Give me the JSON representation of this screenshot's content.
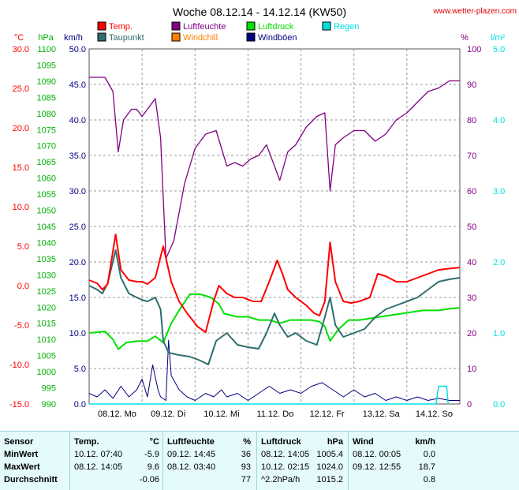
{
  "title": "Woche 08.12.14 - 14.12.14 (KW50)",
  "source": "www.wetter-plazen.com",
  "colors": {
    "temp": "#ff0000",
    "dewpoint": "#2f6e6e",
    "humidity": "#800080",
    "windchill": "#ff8000",
    "pressure": "#00e000",
    "gust": "#000080",
    "rain": "#00e0e0",
    "grid": "#999999"
  },
  "legend": [
    {
      "label": "Temp.",
      "color": "#ff0000"
    },
    {
      "label": "Taupunkt",
      "color": "#2f6e6e"
    },
    {
      "label": "Luftfeuchte",
      "color": "#800080"
    },
    {
      "label": "Windchill",
      "color": "#ff8000"
    },
    {
      "label": "Luftdruck",
      "color": "#00e000"
    },
    {
      "label": "Windböen",
      "color": "#000080"
    },
    {
      "label": "Regen",
      "color": "#00e0e0"
    }
  ],
  "chart_data": {
    "type": "line",
    "title": "Woche 08.12.14 - 14.12.14 (KW50)",
    "x_labels": [
      "08.12. Mo",
      "09.12. Di",
      "10.12. Mi",
      "11.12. Do",
      "12.12. Fr",
      "13.12. Sa",
      "14.12. So"
    ],
    "x_range": [
      0,
      7
    ],
    "grid": true,
    "axes": {
      "temp": {
        "unit": "°C",
        "min": -15,
        "max": 30,
        "ticks": [
          "30.0",
          "25.0",
          "20.0",
          "15.0",
          "10.0",
          "5.0",
          "0.0",
          "-5.0",
          "-10.0",
          "-15.0"
        ]
      },
      "pressure": {
        "unit": "hPa",
        "min": 990,
        "max": 1100,
        "ticks": [
          "1100",
          "1095",
          "1090",
          "1085",
          "1080",
          "1075",
          "1070",
          "1065",
          "1060",
          "1055",
          "1050",
          "1045",
          "1040",
          "1035",
          "1030",
          "1025",
          "1020",
          "1015",
          "1010",
          "1005",
          "1000",
          "995",
          "990"
        ]
      },
      "wind": {
        "unit": "km/h",
        "min": 0,
        "max": 50,
        "ticks": [
          "50.0",
          "45.0",
          "40.0",
          "35.0",
          "30.0",
          "25.0",
          "20.0",
          "15.0",
          "10.0",
          "5.0",
          "0.0"
        ]
      },
      "humidity": {
        "unit": "%",
        "min": 0,
        "max": 100,
        "ticks": [
          "100",
          "90",
          "80",
          "70",
          "60",
          "50",
          "40",
          "30",
          "20",
          "10",
          "0"
        ]
      },
      "rain": {
        "unit": "l/m²",
        "min": 0,
        "max": 5,
        "ticks": [
          "5.0",
          "4.0",
          "3.0",
          "2.0",
          "1.0",
          "0.0"
        ]
      }
    },
    "series": [
      {
        "name": "Temp.",
        "axis": "temp",
        "points": [
          [
            0,
            0.7
          ],
          [
            0.15,
            0.3
          ],
          [
            0.25,
            -0.5
          ],
          [
            0.35,
            0.2
          ],
          [
            0.5,
            6.5
          ],
          [
            0.6,
            2.0
          ],
          [
            0.75,
            0.7
          ],
          [
            0.9,
            0.5
          ],
          [
            1.0,
            0.5
          ],
          [
            1.1,
            0.2
          ],
          [
            1.25,
            1.0
          ],
          [
            1.4,
            5.0
          ],
          [
            1.55,
            0.5
          ],
          [
            1.7,
            -2.0
          ],
          [
            1.85,
            -3.5
          ],
          [
            2.05,
            -5.2
          ],
          [
            2.2,
            -5.9
          ],
          [
            2.35,
            -2.0
          ],
          [
            2.45,
            0.0
          ],
          [
            2.6,
            -1.0
          ],
          [
            2.75,
            -1.5
          ],
          [
            2.9,
            -1.5
          ],
          [
            3.1,
            -2.0
          ],
          [
            3.25,
            -2.0
          ],
          [
            3.4,
            0.5
          ],
          [
            3.55,
            3.2
          ],
          [
            3.65,
            1.5
          ],
          [
            3.75,
            -0.5
          ],
          [
            3.9,
            -1.5
          ],
          [
            4.1,
            -2.5
          ],
          [
            4.25,
            -3.5
          ],
          [
            4.35,
            -3.8
          ],
          [
            4.45,
            -2.0
          ],
          [
            4.55,
            5.5
          ],
          [
            4.65,
            0.5
          ],
          [
            4.8,
            -2.0
          ],
          [
            4.95,
            -2.2
          ],
          [
            5.1,
            -2.0
          ],
          [
            5.3,
            -1.5
          ],
          [
            5.45,
            1.5
          ],
          [
            5.6,
            1.2
          ],
          [
            5.8,
            0.5
          ],
          [
            6.0,
            0.5
          ],
          [
            6.2,
            1.0
          ],
          [
            6.4,
            1.5
          ],
          [
            6.6,
            2.0
          ],
          [
            6.85,
            2.2
          ],
          [
            7.0,
            2.3
          ]
        ]
      },
      {
        "name": "Taupunkt",
        "axis": "temp",
        "points": [
          [
            0,
            0.0
          ],
          [
            0.15,
            -0.5
          ],
          [
            0.25,
            -1.0
          ],
          [
            0.35,
            0.3
          ],
          [
            0.5,
            4.5
          ],
          [
            0.6,
            1.0
          ],
          [
            0.75,
            -1.0
          ],
          [
            0.9,
            -1.5
          ],
          [
            1.0,
            -1.8
          ],
          [
            1.1,
            -2.0
          ],
          [
            1.25,
            -1.5
          ],
          [
            1.35,
            -3.0
          ],
          [
            1.4,
            -7.0
          ],
          [
            1.5,
            -8.5
          ],
          [
            1.7,
            -8.8
          ],
          [
            1.9,
            -9.0
          ],
          [
            2.1,
            -9.5
          ],
          [
            2.25,
            -10.0
          ],
          [
            2.4,
            -7.0
          ],
          [
            2.6,
            -6.0
          ],
          [
            2.8,
            -7.5
          ],
          [
            3.0,
            -7.8
          ],
          [
            3.2,
            -8.0
          ],
          [
            3.35,
            -6.0
          ],
          [
            3.5,
            -3.5
          ],
          [
            3.6,
            -5.0
          ],
          [
            3.75,
            -6.5
          ],
          [
            3.9,
            -6.0
          ],
          [
            4.1,
            -7.0
          ],
          [
            4.3,
            -7.5
          ],
          [
            4.45,
            -4.0
          ],
          [
            4.55,
            -1.5
          ],
          [
            4.65,
            -5.0
          ],
          [
            4.8,
            -6.5
          ],
          [
            5.0,
            -6.0
          ],
          [
            5.2,
            -5.5
          ],
          [
            5.4,
            -4.0
          ],
          [
            5.6,
            -3.0
          ],
          [
            5.8,
            -2.5
          ],
          [
            6.0,
            -2.0
          ],
          [
            6.2,
            -1.5
          ],
          [
            6.4,
            -0.5
          ],
          [
            6.6,
            0.5
          ],
          [
            6.8,
            0.8
          ],
          [
            7.0,
            1.0
          ]
        ]
      },
      {
        "name": "Luftfeuchte",
        "axis": "humidity",
        "points": [
          [
            0,
            92
          ],
          [
            0.3,
            92
          ],
          [
            0.45,
            88
          ],
          [
            0.55,
            71
          ],
          [
            0.65,
            80
          ],
          [
            0.8,
            83
          ],
          [
            0.9,
            83
          ],
          [
            1.0,
            81
          ],
          [
            1.1,
            83
          ],
          [
            1.25,
            86
          ],
          [
            1.35,
            75
          ],
          [
            1.45,
            41
          ],
          [
            1.6,
            46
          ],
          [
            1.8,
            62
          ],
          [
            2.0,
            72
          ],
          [
            2.2,
            76
          ],
          [
            2.4,
            77
          ],
          [
            2.5,
            72
          ],
          [
            2.6,
            67
          ],
          [
            2.75,
            68
          ],
          [
            2.9,
            67
          ],
          [
            3.05,
            69
          ],
          [
            3.2,
            70
          ],
          [
            3.35,
            73
          ],
          [
            3.5,
            67
          ],
          [
            3.6,
            63
          ],
          [
            3.75,
            71
          ],
          [
            3.9,
            73
          ],
          [
            4.1,
            78
          ],
          [
            4.3,
            81
          ],
          [
            4.45,
            82
          ],
          [
            4.55,
            60
          ],
          [
            4.65,
            73
          ],
          [
            4.8,
            75
          ],
          [
            5.0,
            77
          ],
          [
            5.2,
            77
          ],
          [
            5.4,
            74
          ],
          [
            5.6,
            76
          ],
          [
            5.8,
            80
          ],
          [
            6.0,
            82
          ],
          [
            6.2,
            85
          ],
          [
            6.4,
            88
          ],
          [
            6.6,
            89
          ],
          [
            6.8,
            91
          ],
          [
            7.0,
            91
          ]
        ]
      },
      {
        "name": "Luftdruck",
        "axis": "pressure",
        "points": [
          [
            0,
            1012
          ],
          [
            0.3,
            1012.5
          ],
          [
            0.45,
            1010
          ],
          [
            0.55,
            1007
          ],
          [
            0.7,
            1009
          ],
          [
            0.9,
            1009.5
          ],
          [
            1.1,
            1009.5
          ],
          [
            1.25,
            1011
          ],
          [
            1.4,
            1009
          ],
          [
            1.55,
            1015
          ],
          [
            1.7,
            1019
          ],
          [
            1.9,
            1024
          ],
          [
            2.1,
            1024
          ],
          [
            2.3,
            1023
          ],
          [
            2.45,
            1021
          ],
          [
            2.55,
            1018
          ],
          [
            2.8,
            1017
          ],
          [
            3.0,
            1017
          ],
          [
            3.2,
            1016
          ],
          [
            3.4,
            1016
          ],
          [
            3.6,
            1015
          ],
          [
            3.8,
            1016
          ],
          [
            4.0,
            1016
          ],
          [
            4.2,
            1016
          ],
          [
            4.35,
            1015.5
          ],
          [
            4.45,
            1014
          ],
          [
            4.55,
            1009.5
          ],
          [
            4.7,
            1013
          ],
          [
            4.9,
            1016
          ],
          [
            5.1,
            1016
          ],
          [
            5.3,
            1016.5
          ],
          [
            5.5,
            1017
          ],
          [
            5.7,
            1017.5
          ],
          [
            5.9,
            1018
          ],
          [
            6.1,
            1018.5
          ],
          [
            6.3,
            1019
          ],
          [
            6.6,
            1019
          ],
          [
            6.8,
            1019.5
          ],
          [
            7.0,
            1019.8
          ]
        ]
      },
      {
        "name": "Windböen",
        "axis": "wind",
        "points": [
          [
            0,
            1.5
          ],
          [
            0.15,
            1.0
          ],
          [
            0.3,
            2.0
          ],
          [
            0.45,
            0.8
          ],
          [
            0.6,
            2.5
          ],
          [
            0.75,
            1.0
          ],
          [
            0.9,
            2.0
          ],
          [
            1.0,
            3.5
          ],
          [
            1.1,
            1.0
          ],
          [
            1.2,
            5.5
          ],
          [
            1.3,
            2.0
          ],
          [
            1.35,
            1.0
          ],
          [
            1.45,
            0.5
          ],
          [
            1.5,
            9.0
          ],
          [
            1.55,
            4.0
          ],
          [
            1.7,
            2.0
          ],
          [
            1.85,
            1.0
          ],
          [
            2.0,
            0.5
          ],
          [
            2.2,
            1.5
          ],
          [
            2.35,
            1.0
          ],
          [
            2.5,
            2.0
          ],
          [
            2.6,
            1.0
          ],
          [
            2.8,
            1.5
          ],
          [
            3.0,
            0.5
          ],
          [
            3.2,
            1.5
          ],
          [
            3.4,
            2.5
          ],
          [
            3.6,
            1.5
          ],
          [
            3.8,
            2.0
          ],
          [
            4.0,
            1.5
          ],
          [
            4.2,
            2.5
          ],
          [
            4.4,
            3.0
          ],
          [
            4.6,
            2.0
          ],
          [
            4.8,
            1.0
          ],
          [
            5.0,
            2.0
          ],
          [
            5.2,
            1.0
          ],
          [
            5.4,
            1.5
          ],
          [
            5.6,
            0.5
          ],
          [
            5.8,
            1.0
          ],
          [
            6.0,
            0.5
          ],
          [
            6.2,
            1.0
          ],
          [
            6.4,
            0.5
          ],
          [
            6.6,
            0.8
          ],
          [
            6.8,
            0.5
          ],
          [
            7.0,
            0.5
          ]
        ]
      },
      {
        "name": "Regen",
        "axis": "rain",
        "points": [
          [
            0,
            0
          ],
          [
            6.55,
            0
          ],
          [
            6.6,
            0.25
          ],
          [
            6.75,
            0.25
          ],
          [
            6.78,
            0
          ]
        ]
      }
    ]
  },
  "stats": {
    "headers": [
      "Sensor",
      "Temp.",
      "°C",
      "Luftfeuchte",
      "%",
      "Luftdruck",
      "hPa",
      "Wind",
      "km/h"
    ],
    "rows": [
      {
        "label": "MinWert",
        "cells": [
          "10.12. 07:40",
          "-5.9",
          "09.12. 14:45",
          "36",
          "08.12. 14:05",
          "1005.4",
          "08.12. 00:05",
          "0.0"
        ]
      },
      {
        "label": "MaxWert",
        "cells": [
          "08.12. 14:05",
          "9.6",
          "08.12. 03:40",
          "93",
          "10.12. 02:15",
          "1024.0",
          "09.12. 12:55",
          "18.7"
        ]
      },
      {
        "label": "Durchschnitt",
        "cells": [
          "",
          "-0.06",
          "",
          "77",
          "^2.2hPa/h",
          "1015.2",
          "",
          "0.8"
        ]
      }
    ]
  }
}
